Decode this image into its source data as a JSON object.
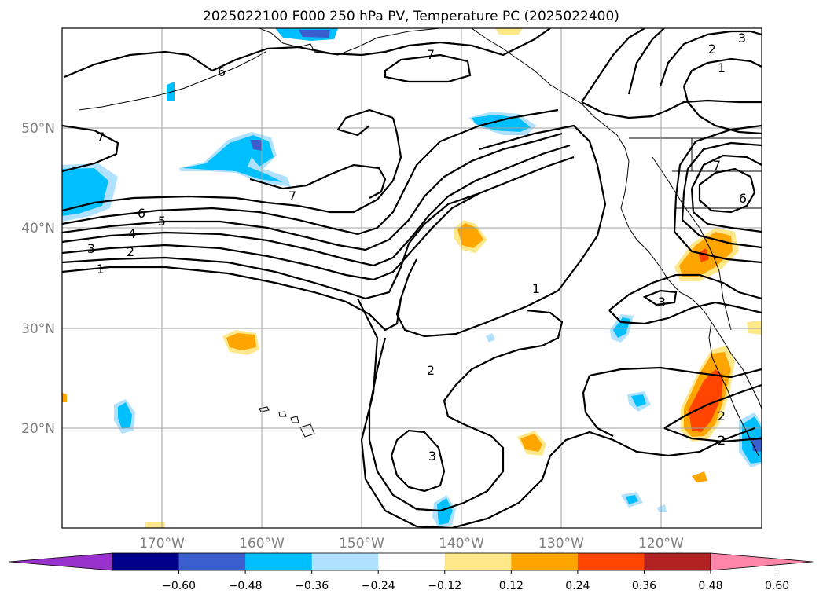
{
  "title": "2025022100 F000 250 hPa PV, Temperature PC (2025022400)",
  "map": {
    "lat_labels": [
      "50°N",
      "40°N",
      "30°N",
      "20°N"
    ],
    "lon_labels": [
      "170°W",
      "160°W",
      "150°W",
      "140°W",
      "130°W",
      "120°W"
    ],
    "grid": true
  },
  "colorbar": {
    "ticks": [
      "−0.60",
      "−0.48",
      "−0.36",
      "−0.24",
      "−0.12",
      "0.12",
      "0.24",
      "0.36",
      "0.48",
      "0.60"
    ],
    "colors": [
      "#9932cc",
      "#00008b",
      "#3a5fcd",
      "#00bfff",
      "#b0e2ff",
      "#ffffff",
      "#ffe88a",
      "#ffa500",
      "#ff4500",
      "#b22222",
      "#ff86a8"
    ],
    "extend": "both"
  },
  "contour_labels": [
    "7",
    "6",
    "7",
    "7",
    "6",
    "5",
    "4",
    "3",
    "2",
    "1",
    "1",
    "2",
    "3",
    "3",
    "2",
    "1",
    "2",
    "6",
    "7",
    "3",
    "2"
  ],
  "shading_colors": {
    "neg_light": "#b0e2ff",
    "neg_mid": "#00bfff",
    "neg_strong": "#3a5fcd",
    "pos_light": "#ffe88a",
    "pos_mid": "#ffa500",
    "pos_strong": "#ff4500"
  }
}
